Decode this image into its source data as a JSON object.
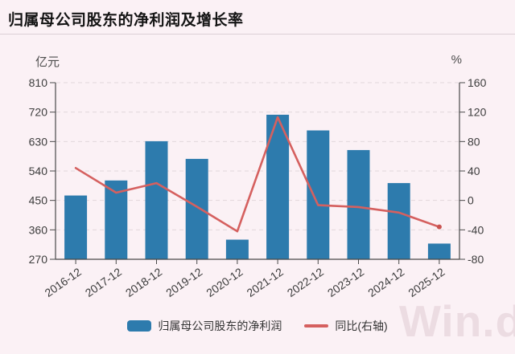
{
  "header": {
    "title": "归属母公司股东的净利润及增长率"
  },
  "chart": {
    "left_axis": {
      "unit": "亿元",
      "ticks": [
        270,
        360,
        450,
        540,
        630,
        720,
        810
      ]
    },
    "right_axis": {
      "unit": "%",
      "ticks": [
        -80,
        -40,
        0,
        40,
        80,
        120,
        160
      ]
    },
    "legend": [
      {
        "label": "归属母公司股东的净利润",
        "type": "bar"
      },
      {
        "label": "同比(右轴)",
        "type": "line"
      }
    ]
  },
  "chart_data": {
    "type": "bar+line",
    "title": "归属母公司股东的净利润及增长率",
    "categories": [
      "2016-12",
      "2017-12",
      "2018-12",
      "2019-12",
      "2020-12",
      "2021-12",
      "2022-12",
      "2023-12",
      "2024-12",
      "2025-12"
    ],
    "series": [
      {
        "name": "归属母公司股东的净利润",
        "type": "bar",
        "axis": "left",
        "unit": "亿元",
        "values": [
          465,
          511,
          631,
          577,
          330,
          712,
          664,
          604,
          503,
          318
        ]
      },
      {
        "name": "同比(右轴)",
        "type": "line",
        "axis": "right",
        "unit": "%",
        "values": [
          44,
          10.5,
          23.5,
          -8.5,
          -42,
          113,
          -6.5,
          -9,
          -16.5,
          -36
        ]
      }
    ],
    "left_ylabel": "亿元",
    "right_ylabel": "%",
    "left_ylim": [
      270,
      810
    ],
    "right_ylim": [
      -80,
      160
    ],
    "left_ticks": [
      270,
      360,
      450,
      540,
      630,
      720,
      810
    ],
    "right_ticks": [
      -80,
      -40,
      0,
      40,
      80,
      120,
      160
    ],
    "grid": "horizontal-dashed",
    "legend_position": "bottom",
    "endpoint_marker": "dot-on-last-line-point"
  },
  "watermark": {
    "text": "Win.d"
  },
  "colors": {
    "bar": "#2d7bad",
    "line": "#d5605f",
    "line_dot": "#c9524f",
    "background": "#fbf1f5",
    "grid": "#e2d6db",
    "axis": "#4a4a4a",
    "tick_text": "#3d3d3d",
    "title_text": "#141414",
    "watermark": "#ecdce2"
  }
}
